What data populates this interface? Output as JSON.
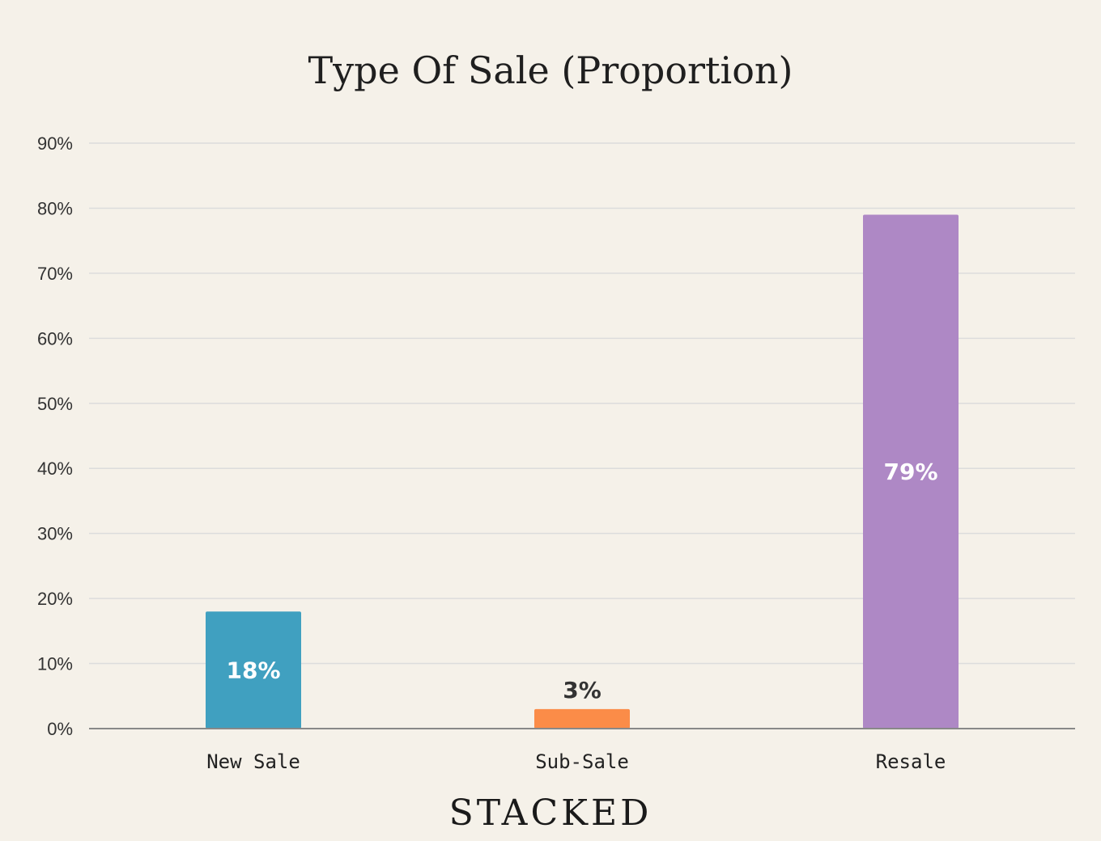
{
  "chart_data": {
    "type": "bar",
    "title": "Type Of Sale (Proportion)",
    "xlabel": "",
    "ylabel": "",
    "categories": [
      "New Sale",
      "Sub-Sale",
      "Resale"
    ],
    "values": [
      18,
      3,
      79
    ],
    "data_labels": [
      "18%",
      "3%",
      "79%"
    ],
    "colors": [
      "#40a0c0",
      "#fb8c48",
      "#ae88c5"
    ],
    "ylim": [
      0,
      90
    ],
    "yticks": [
      0,
      10,
      20,
      30,
      40,
      50,
      60,
      70,
      80,
      90
    ],
    "ytick_labels": [
      "0%",
      "10%",
      "20%",
      "30%",
      "40%",
      "50%",
      "60%",
      "70%",
      "80%",
      "90%"
    ],
    "grid": true,
    "legend": "none"
  },
  "brand": {
    "name": "STACKED"
  },
  "colors": {
    "background": "#f5f1e9",
    "grid": "#dcdcdc",
    "axis": "#888888"
  }
}
